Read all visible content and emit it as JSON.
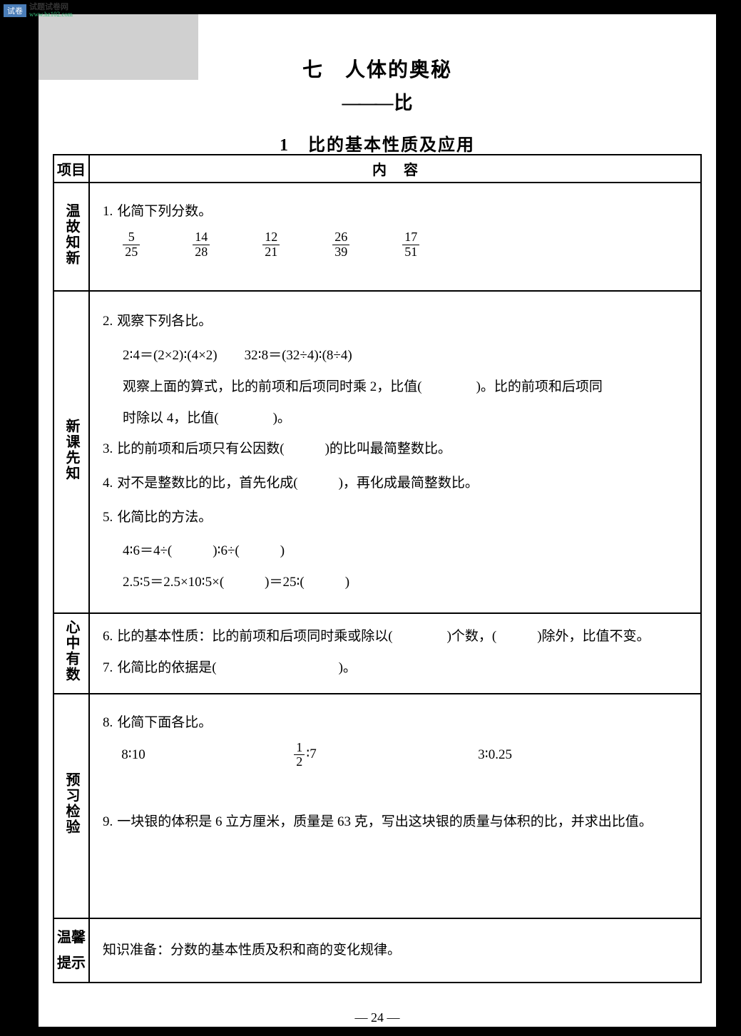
{
  "watermark": {
    "icon": "试卷",
    "title": "试题试卷网",
    "url": "www.hz102.com"
  },
  "titles": {
    "chapter": "七　人体的奥秘",
    "subtitle": "比",
    "section": "1　比的基本性质及应用"
  },
  "table": {
    "header": {
      "col1": "项目",
      "col2": "内容"
    },
    "rows": [
      {
        "label": "温故知新",
        "items": [
          {
            "num": "1.",
            "text": "化简下列分数。",
            "fractions": [
              {
                "n": "5",
                "d": "25"
              },
              {
                "n": "14",
                "d": "28"
              },
              {
                "n": "12",
                "d": "21"
              },
              {
                "n": "26",
                "d": "39"
              },
              {
                "n": "17",
                "d": "51"
              }
            ]
          }
        ]
      },
      {
        "label": "新课先知",
        "items": [
          {
            "num": "2.",
            "text": "观察下列各比。",
            "lines": [
              "2∶4＝(2×2)∶(4×2)　　32∶8＝(32÷4)∶(8÷4)",
              "观察上面的算式，比的前项和后项同时乘 2，比值(　　　　)。比的前项和后项同",
              "时除以 4，比值(　　　　)。"
            ]
          },
          {
            "num": "3.",
            "text": "比的前项和后项只有公因数(　　　)的比叫最简整数比。"
          },
          {
            "num": "4.",
            "text": "对不是整数比的比，首先化成(　　　)，再化成最简整数比。"
          },
          {
            "num": "5.",
            "text": "化简比的方法。",
            "lines": [
              "4∶6＝4÷(　　　)∶6÷(　　　)",
              "2.5∶5＝2.5×10∶5×(　　　)＝25∶(　　　)"
            ]
          }
        ]
      },
      {
        "label": "心中有数",
        "items": [
          {
            "num": "6.",
            "text": "比的基本性质：比的前项和后项同时乘或除以(　　　　)个数，(　　　)除外，比值不变。"
          },
          {
            "num": "7.",
            "text": "化简比的依据是(　　　　　　　　　)。"
          }
        ]
      },
      {
        "label": "预习检验",
        "items": [
          {
            "num": "8.",
            "text": "化简下面各比。",
            "ratios": {
              "a": "8∶10",
              "b_n": "1",
              "b_d": "2",
              "b_rest": "∶7",
              "c": "3∶0.25"
            }
          },
          {
            "num": "9.",
            "text": "一块银的体积是 6 立方厘米，质量是 63 克，写出这块银的质量与体积的比，并求出比值。"
          }
        ]
      },
      {
        "label": "温馨提示",
        "text": "知识准备：分数的基本性质及积和商的变化规律。"
      }
    ]
  },
  "pageNumber": "— 24 —",
  "colors": {
    "page_bg": "#ffffff",
    "body_bg": "#000000",
    "grey_box": "#d0d0d0",
    "border": "#000000",
    "text": "#000000"
  },
  "typography": {
    "body_font": "SimSun",
    "title_size_pt": 28,
    "section_size_pt": 24,
    "content_size_pt": 19
  }
}
